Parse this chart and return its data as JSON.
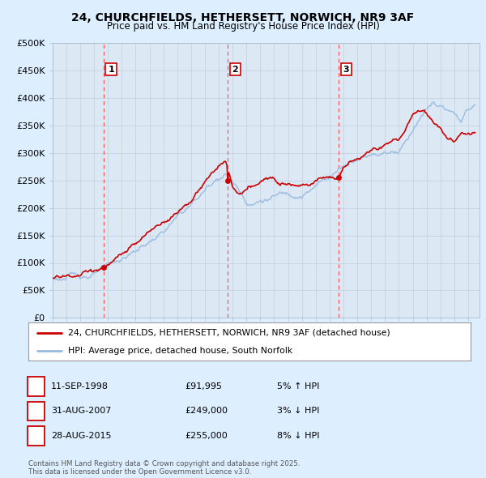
{
  "title": "24, CHURCHFIELDS, HETHERSETT, NORWICH, NR9 3AF",
  "subtitle": "Price paid vs. HM Land Registry's House Price Index (HPI)",
  "ylim": [
    0,
    500000
  ],
  "yticks": [
    0,
    50000,
    100000,
    150000,
    200000,
    250000,
    300000,
    350000,
    400000,
    450000,
    500000
  ],
  "ytick_labels": [
    "£0",
    "£50K",
    "£100K",
    "£150K",
    "£200K",
    "£250K",
    "£300K",
    "£350K",
    "£400K",
    "£450K",
    "£500K"
  ],
  "line1_color": "#cc0000",
  "line2_color": "#99bbdd",
  "background_color": "#ddeeff",
  "plot_bg_color": "#dde8f5",
  "grid_color": "#c0cfe0",
  "vline_color": "#ff4444",
  "marker_box_color": "#cc0000",
  "xlim_start": 1995,
  "xlim_end": 2025.8,
  "transactions": [
    {
      "label": "1",
      "date": "11-SEP-1998",
      "price": 91995,
      "x_year": 1998.7,
      "pct": "5%",
      "direction": "↑"
    },
    {
      "label": "2",
      "date": "31-AUG-2007",
      "price": 249000,
      "x_year": 2007.66,
      "pct": "3%",
      "direction": "↓"
    },
    {
      "label": "3",
      "date": "28-AUG-2015",
      "price": 255000,
      "x_year": 2015.66,
      "pct": "8%",
      "direction": "↓"
    }
  ],
  "legend_line1": "24, CHURCHFIELDS, HETHERSETT, NORWICH, NR9 3AF (detached house)",
  "legend_line2": "HPI: Average price, detached house, South Norfolk",
  "footer1": "Contains HM Land Registry data © Crown copyright and database right 2025.",
  "footer2": "This data is licensed under the Open Government Licence v3.0.",
  "hpi_knots_x": [
    1995,
    1996,
    1997,
    1998,
    1999,
    2000,
    2001,
    2002,
    2003,
    2004,
    2005,
    2006,
    2007,
    2007.5,
    2008,
    2008.5,
    2009,
    2009.5,
    2010,
    2011,
    2012,
    2013,
    2014,
    2015,
    2016,
    2017,
    2018,
    2019,
    2020,
    2020.5,
    2021,
    2021.5,
    2022,
    2022.5,
    2023,
    2023.5,
    2024,
    2024.5,
    2025,
    2025.5
  ],
  "hpi_knots_y": [
    70000,
    73000,
    76000,
    82000,
    88000,
    100000,
    115000,
    132000,
    150000,
    172000,
    195000,
    220000,
    248000,
    255000,
    242000,
    225000,
    210000,
    208000,
    215000,
    222000,
    228000,
    235000,
    248000,
    268000,
    290000,
    310000,
    322000,
    330000,
    335000,
    355000,
    380000,
    400000,
    415000,
    425000,
    420000,
    410000,
    395000,
    390000,
    405000,
    415000
  ],
  "prop_knots_x": [
    1995,
    1996,
    1997,
    1998.7,
    1999,
    2000,
    2001,
    2002,
    2003,
    2004,
    2005,
    2006,
    2007,
    2007.5,
    2007.66,
    2008,
    2008.5,
    2009,
    2009.5,
    2010,
    2011,
    2012,
    2013,
    2014,
    2015,
    2015.5,
    2015.66,
    2016,
    2017,
    2018,
    2019,
    2020,
    2020.5,
    2021,
    2021.5,
    2022,
    2022.5,
    2023,
    2023.5,
    2024,
    2024.5,
    2025,
    2025.5
  ],
  "prop_knots_y": [
    72000,
    75000,
    78000,
    91995,
    94000,
    108000,
    122000,
    140000,
    158000,
    180000,
    204000,
    232000,
    262000,
    268000,
    249000,
    218000,
    205000,
    210000,
    215000,
    222000,
    228000,
    232000,
    238000,
    248000,
    260000,
    255000,
    255000,
    275000,
    295000,
    310000,
    322000,
    330000,
    353000,
    375000,
    385000,
    385000,
    368000,
    360000,
    347000,
    340000,
    352000,
    357000,
    362000
  ]
}
